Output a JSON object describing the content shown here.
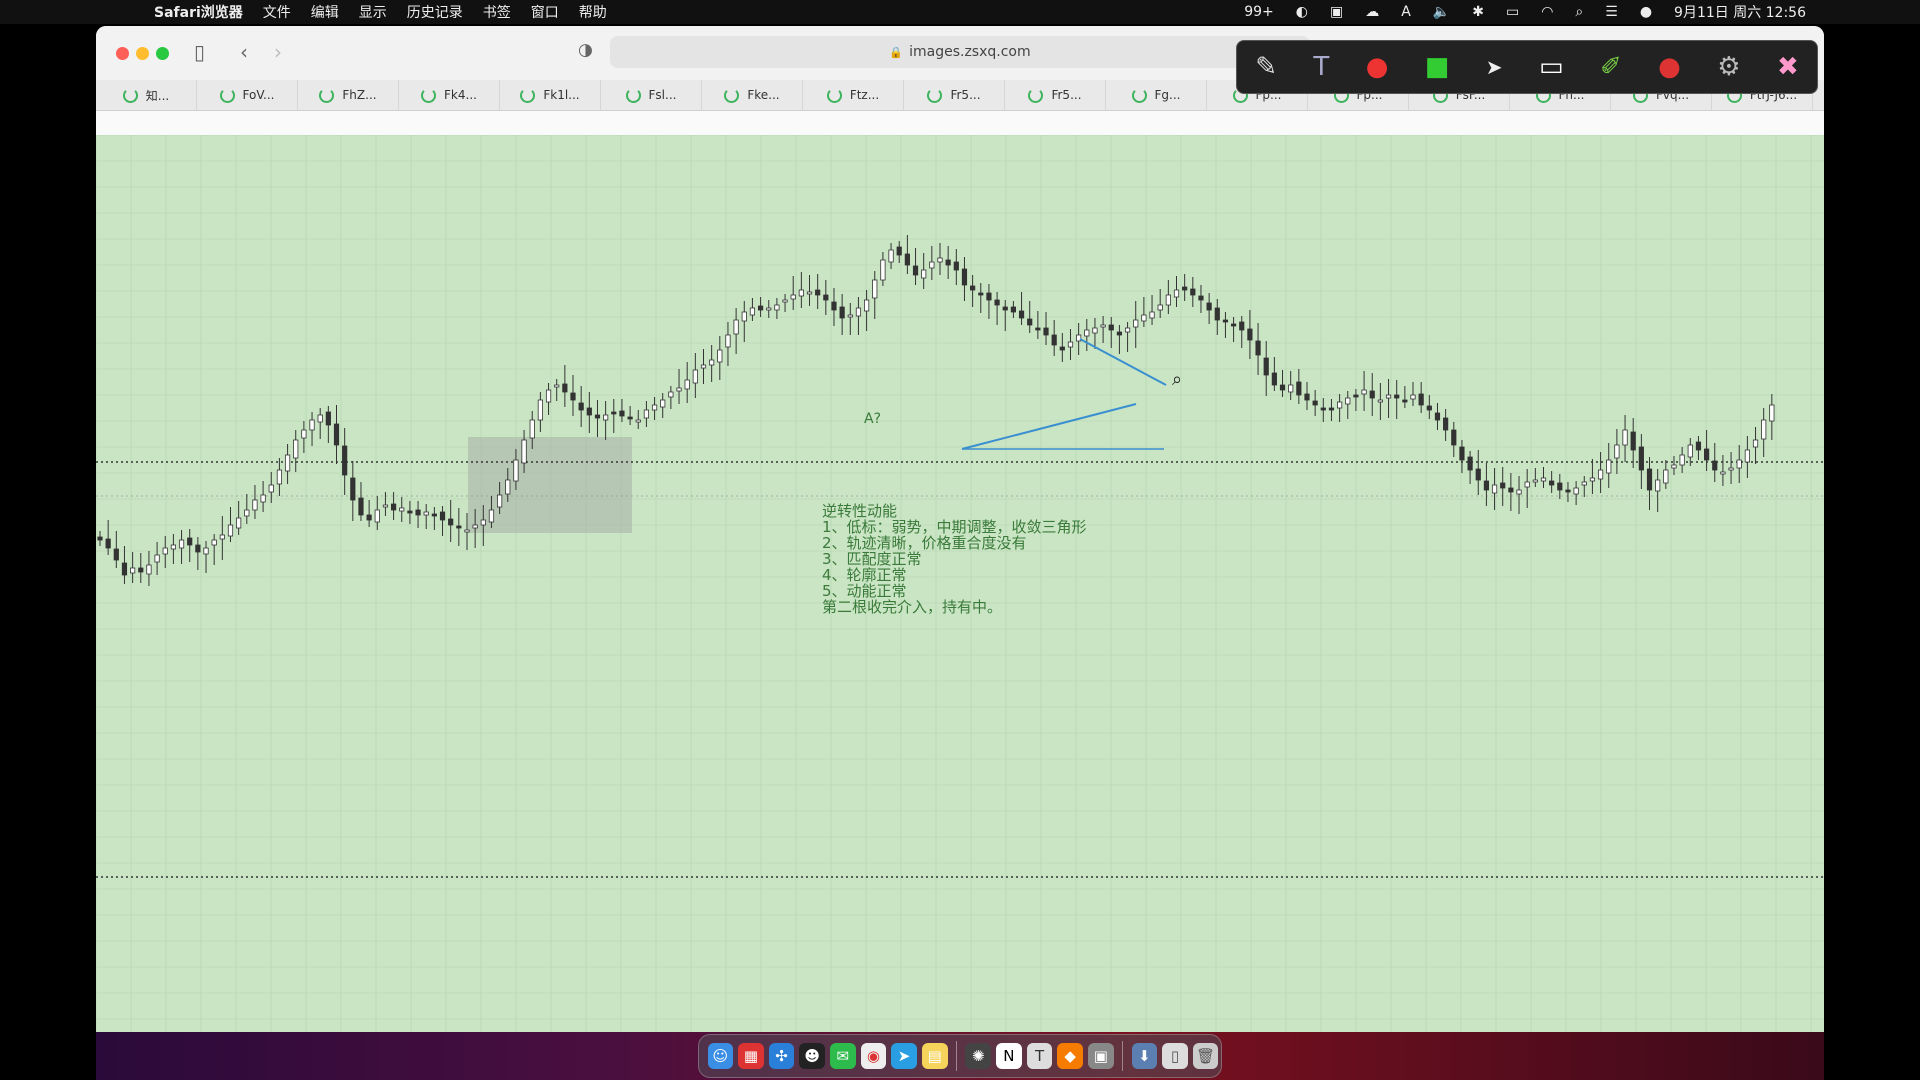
{
  "menubar": {
    "app_name": "Safari浏览器",
    "items": [
      "文件",
      "编辑",
      "显示",
      "历史记录",
      "书签",
      "窗口",
      "帮助"
    ],
    "notification_badge": "99+",
    "input_indicator": "A",
    "clock": "9月11日 周六  12:56"
  },
  "browser": {
    "url": "images.zsxq.com",
    "tabs": [
      "知...",
      "FoV...",
      "FhZ...",
      "Fk4...",
      "Fk1l...",
      "Fsl...",
      "Fke...",
      "Ftz...",
      "Fr5...",
      "Fr5...",
      "Fg...",
      "Fp...",
      "Fp...",
      "FsF...",
      "Fh...",
      "Fvq...",
      "FtrJ-J6..."
    ]
  },
  "chart": {
    "a_label": "A?",
    "notes": [
      "逆转性动能",
      "1、低标：弱势，中期调整，收敛三角形",
      "2、轨迹清晰，价格重合度没有",
      "3、匹配度正常",
      "4、轮廓正常",
      "5、动能正常",
      "第二根收完介入，持有中。"
    ]
  },
  "chart_data": {
    "type": "candlestick",
    "title": "",
    "xlabel": "",
    "ylabel": "",
    "closes": [
      540,
      548,
      560,
      575,
      568,
      572,
      565,
      555,
      548,
      545,
      540,
      545,
      552,
      548,
      540,
      535,
      525,
      518,
      510,
      500,
      495,
      485,
      470,
      455,
      440,
      430,
      420,
      415,
      425,
      445,
      475,
      500,
      515,
      520,
      510,
      505,
      510,
      508,
      512,
      515,
      512,
      515,
      520,
      525,
      528,
      530,
      525,
      520,
      510,
      495,
      480,
      460,
      440,
      420,
      400,
      390,
      385,
      392,
      400,
      410,
      415,
      418,
      415,
      412,
      416,
      418,
      420,
      410,
      405,
      400,
      392,
      388,
      380,
      370,
      365,
      360,
      350,
      335,
      320,
      312,
      308,
      310,
      308,
      305,
      300,
      295,
      290,
      292,
      295,
      300,
      310,
      318,
      315,
      308,
      300,
      280,
      260,
      250,
      255,
      265,
      275,
      270,
      262,
      258,
      265,
      270,
      285,
      290,
      295,
      300,
      305,
      310,
      312,
      318,
      325,
      330,
      335,
      345,
      350,
      342,
      335,
      330,
      328,
      325,
      330,
      335,
      328,
      320,
      315,
      312,
      305,
      295,
      290,
      290,
      295,
      300,
      310,
      320,
      322,
      325,
      330,
      340,
      355,
      375,
      385,
      390,
      385,
      395,
      400,
      405,
      410,
      408,
      402,
      398,
      395,
      390,
      398,
      400,
      395,
      398,
      402,
      395,
      405,
      410,
      420,
      430,
      445,
      460,
      470,
      480,
      490,
      485,
      488,
      492,
      490,
      482,
      480,
      478,
      485,
      490,
      492,
      488,
      482,
      478,
      470,
      460,
      445,
      430,
      450,
      470,
      490,
      480,
      470,
      465,
      455,
      445,
      450,
      460,
      470,
      472,
      468,
      460,
      450,
      440,
      420,
      405
    ],
    "horizontal_lines_dotted": 2,
    "grid": true
  },
  "toolbar": {
    "icons": [
      "pen-icon",
      "text-icon",
      "shape-icon",
      "highlighter-icon",
      "pointer-icon",
      "rectangle-icon",
      "marker-icon",
      "record-icon",
      "settings-icon",
      "eraser-icon"
    ]
  },
  "dock": {
    "apps": [
      "finder-icon",
      "launchpad-icon",
      "safari-icon",
      "qq-icon",
      "wechat-icon",
      "chrome-icon",
      "telegram-icon",
      "notes-icon",
      "davinci-icon",
      "notion-icon",
      "typora-icon",
      "sublime-icon",
      "preview-icon",
      "downloads-icon",
      "trash-icon"
    ]
  },
  "colors": {
    "chart_bg": "#c9e5c4",
    "candle": "#333333",
    "trendline": "#3a8fd0",
    "box": "#9aa89a"
  }
}
